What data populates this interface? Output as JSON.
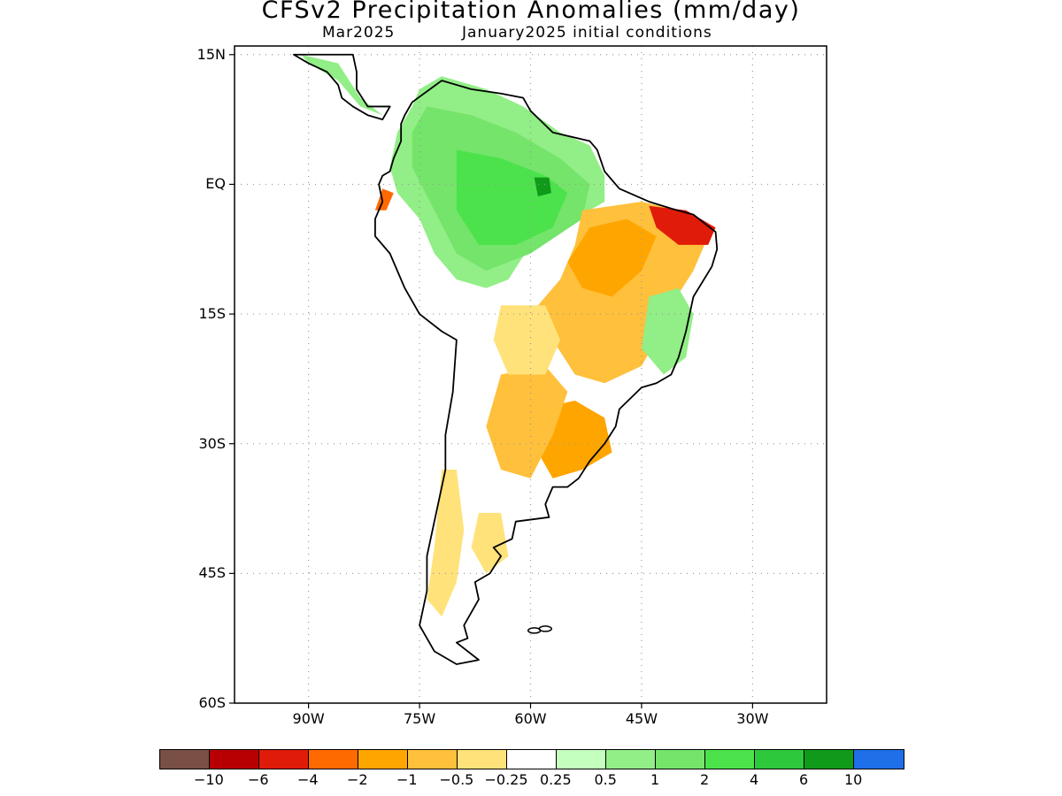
{
  "title": "CFSv2 Precipitation Anomalies (mm/day)",
  "subtitle_left": "Mar2025",
  "subtitle_right": "January2025 initial conditions",
  "y_axis": {
    "labels": [
      "15N",
      "EQ",
      "15S",
      "30S",
      "45S",
      "60S"
    ],
    "values": [
      15,
      0,
      -15,
      -30,
      -45,
      -60
    ]
  },
  "x_axis": {
    "labels": [
      "90W",
      "75W",
      "60W",
      "45W",
      "30W"
    ],
    "values": [
      -90,
      -75,
      -60,
      -45,
      -30
    ]
  },
  "map_extent": {
    "lon_min": -100,
    "lon_max": -20,
    "lat_min": -60,
    "lat_max": 16
  },
  "anomaly_palette": {
    "dry_extreme": "#7a4f45",
    "dry_red": "#e01b0a",
    "dry_orange": "#ff6a00",
    "dry_amber": "#ffa500",
    "dry_light": "#ffc03c",
    "dry_pale": "#ffe27a",
    "wet_pale": "#c4ffbe",
    "wet_light": "#92ee86",
    "wet_mid": "#74e46a",
    "wet_bright": "#4ce24c",
    "wet_strong": "#2ec83c",
    "wet_dark": "#0f9a1a"
  },
  "colorbar": {
    "colors": [
      "#7a4f45",
      "#b80003",
      "#e01b0a",
      "#ff6a00",
      "#ffa500",
      "#ffc03c",
      "#ffe27a",
      "#ffffff",
      "#c4ffbe",
      "#92ee86",
      "#74e46a",
      "#4ce24c",
      "#2ec83c",
      "#0f9a1a",
      "#1f6fe8"
    ],
    "labels": [
      "−10",
      "−6",
      "−4",
      "−2",
      "−1",
      "−0.5",
      "−0.25",
      "0.25",
      "0.5",
      "1",
      "2",
      "4",
      "6",
      "10"
    ]
  }
}
